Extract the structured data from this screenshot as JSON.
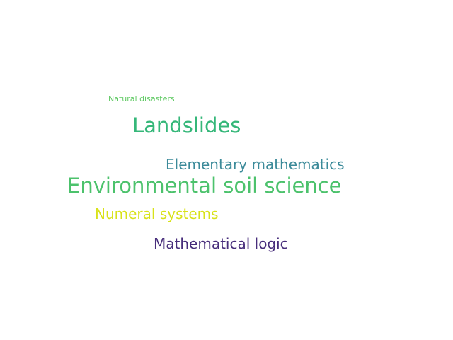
{
  "words": [
    {
      "text": "Natural disasters",
      "color": "#5ec962"
    },
    {
      "text": "Landslides",
      "color": "#35b779"
    },
    {
      "text": "Elementary mathematics",
      "color": "#3b8a99"
    },
    {
      "text": "Environmental soil science",
      "color": "#4cc26c"
    },
    {
      "text": "Numeral systems",
      "color": "#d8e219"
    },
    {
      "text": "Mathematical logic",
      "color": "#472d7b"
    }
  ]
}
